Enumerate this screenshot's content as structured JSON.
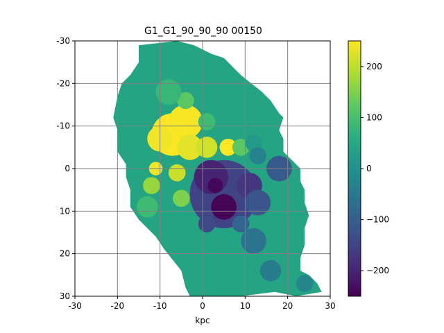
{
  "chart_data": {
    "type": "heatmap",
    "title": "G1_G1_90_90_90   00150",
    "xlabel": "kpc",
    "ylabel": "",
    "xlim": [
      -30,
      30
    ],
    "ylim": [
      -30,
      30
    ],
    "x_ticks": [
      "-30",
      "-20",
      "-10",
      "0",
      "10",
      "20",
      "30"
    ],
    "y_ticks": [
      "-30",
      "-20",
      "-10",
      "0",
      "10",
      "20",
      "30"
    ],
    "y_axis_inverted": true,
    "grid": true,
    "colormap": "viridis",
    "colorbar": {
      "range": [
        -250,
        250
      ],
      "ticks": [
        "200",
        "100",
        "0",
        "−100",
        "−200"
      ],
      "tick_values": [
        200,
        100,
        0,
        -100,
        -200
      ]
    },
    "background_value": 40,
    "features": [
      {
        "kind": "blob",
        "x": -7,
        "y": -8,
        "r": 5,
        "value": 250
      },
      {
        "kind": "blob",
        "x": -4,
        "y": -11,
        "r": 4,
        "value": 245
      },
      {
        "kind": "blob",
        "x": -3,
        "y": -5,
        "r": 3,
        "value": 230
      },
      {
        "kind": "blob",
        "x": -10,
        "y": -7,
        "r": 3,
        "value": 240
      },
      {
        "kind": "blob",
        "x": 1,
        "y": -5,
        "r": 2.5,
        "value": 215
      },
      {
        "kind": "blob",
        "x": 6,
        "y": -5,
        "r": 2,
        "value": 250
      },
      {
        "kind": "blob",
        "x": -11,
        "y": 0,
        "r": 1.6,
        "value": 240
      },
      {
        "kind": "blob",
        "x": -6,
        "y": 1,
        "r": 2,
        "value": 210
      },
      {
        "kind": "blob",
        "x": -12,
        "y": 4,
        "r": 2,
        "value": 170
      },
      {
        "kind": "blob",
        "x": -5,
        "y": 7,
        "r": 2,
        "value": 150
      },
      {
        "kind": "blob",
        "x": -13,
        "y": 9,
        "r": 2.5,
        "value": 90
      },
      {
        "kind": "blob",
        "x": -4,
        "y": -16,
        "r": 2,
        "value": 120
      },
      {
        "kind": "blob",
        "x": 9,
        "y": -5,
        "r": 2,
        "value": 120
      },
      {
        "kind": "blob",
        "x": 9,
        "y": 5,
        "r": 2,
        "value": 110
      },
      {
        "kind": "blob",
        "x": 1,
        "y": -11,
        "r": 2,
        "value": 90
      },
      {
        "kind": "blob",
        "x": -8,
        "y": -18,
        "r": 3,
        "value": 80
      },
      {
        "kind": "blob",
        "x": 5,
        "y": 6,
        "r": 8,
        "value": -150
      },
      {
        "kind": "blob",
        "x": 2,
        "y": 2,
        "r": 4,
        "value": -200
      },
      {
        "kind": "blob",
        "x": 3,
        "y": 4,
        "r": 1.8,
        "value": -240
      },
      {
        "kind": "blob",
        "x": 5,
        "y": 9,
        "r": 3,
        "value": -245
      },
      {
        "kind": "blob",
        "x": 11,
        "y": 4,
        "r": 3,
        "value": -170
      },
      {
        "kind": "blob",
        "x": 18,
        "y": 0,
        "r": 3,
        "value": -110
      },
      {
        "kind": "blob",
        "x": 13,
        "y": 8,
        "r": 3,
        "value": -120
      },
      {
        "kind": "blob",
        "x": 1,
        "y": 13,
        "r": 2,
        "value": -140
      },
      {
        "kind": "blob",
        "x": 9,
        "y": 13,
        "r": 2,
        "value": -90
      },
      {
        "kind": "blob",
        "x": 12,
        "y": 17,
        "r": 3,
        "value": -60
      },
      {
        "kind": "blob",
        "x": 16,
        "y": 24,
        "r": 2.5,
        "value": -40
      },
      {
        "kind": "blob",
        "x": 24,
        "y": 27,
        "r": 2,
        "value": -20
      },
      {
        "kind": "blob",
        "x": 12,
        "y": -6,
        "r": 2,
        "value": 20
      },
      {
        "kind": "blob",
        "x": 13,
        "y": -3,
        "r": 2,
        "value": -30
      }
    ]
  }
}
